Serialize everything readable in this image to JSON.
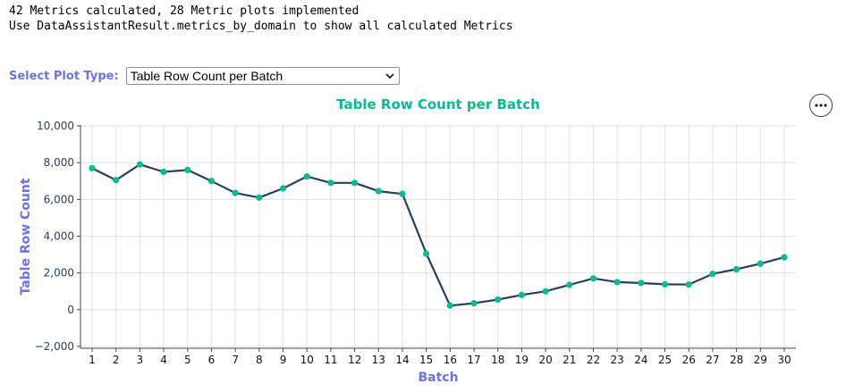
{
  "header": {
    "line1": "42 Metrics calculated, 28 Metric plots implemented",
    "line2": "Use DataAssistantResult.metrics_by_domain to show all calculated Metrics"
  },
  "plot_selector": {
    "label": "Select Plot Type:",
    "selected": "Table Row Count per Batch"
  },
  "menu_button": {
    "icon": "more-horizontal-icon"
  },
  "colors": {
    "accent": "#6a73ee",
    "title": "#00bf8f",
    "line": "#2c3e5f",
    "marker": "#00bf8f"
  },
  "chart_data": {
    "type": "line",
    "title": "Table Row Count per Batch",
    "xlabel": "Batch",
    "ylabel": "Table Row Count",
    "x": [
      1,
      2,
      3,
      4,
      5,
      6,
      7,
      8,
      9,
      10,
      11,
      12,
      13,
      14,
      15,
      16,
      17,
      18,
      19,
      20,
      21,
      22,
      23,
      24,
      25,
      26,
      27,
      28,
      29,
      30
    ],
    "x_tick_labels": [
      "1",
      "2",
      "3",
      "4",
      "5",
      "6",
      "7",
      "8",
      "9",
      "10",
      "11",
      "12",
      "13",
      "14",
      "15",
      "16",
      "17",
      "18",
      "19",
      "20",
      "21",
      "22",
      "23",
      "24",
      "25",
      "26",
      "27",
      "28",
      "29",
      "30"
    ],
    "values": [
      7700,
      7050,
      7900,
      7500,
      7600,
      7000,
      6350,
      6100,
      6600,
      7250,
      6900,
      6900,
      6450,
      6300,
      3050,
      220,
      350,
      550,
      800,
      1000,
      1350,
      1700,
      1500,
      1450,
      1380,
      1370,
      1950,
      2200,
      2500,
      2850
    ],
    "ylim": [
      -2100,
      10050
    ],
    "y_ticks": [
      -2000,
      0,
      2000,
      4000,
      6000,
      8000,
      10000
    ],
    "y_tick_labels": [
      "−2,000",
      "0",
      "2,000",
      "4,000",
      "6,000",
      "8,000",
      "10,000"
    ],
    "grid": true,
    "legend": "none"
  }
}
